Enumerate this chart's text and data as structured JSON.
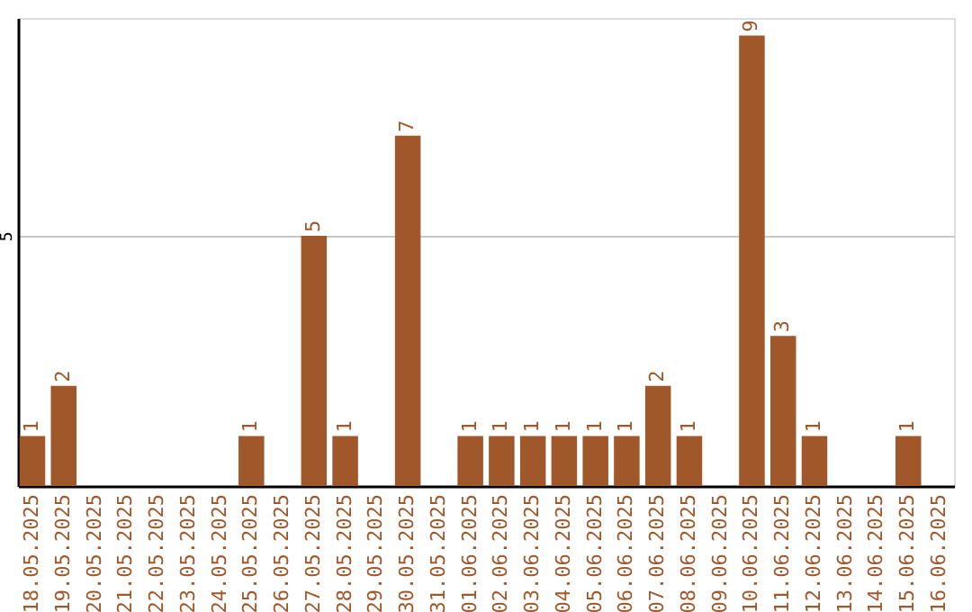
{
  "chart_data": {
    "type": "bar",
    "categories": [
      "18.05.2025",
      "19.05.2025",
      "20.05.2025",
      "21.05.2025",
      "22.05.2025",
      "23.05.2025",
      "24.05.2025",
      "25.05.2025",
      "26.05.2025",
      "27.05.2025",
      "28.05.2025",
      "29.05.2025",
      "30.05.2025",
      "31.05.2025",
      "01.06.2025",
      "02.06.2025",
      "03.06.2025",
      "04.06.2025",
      "05.06.2025",
      "06.06.2025",
      "07.06.2025",
      "08.06.2025",
      "09.06.2025",
      "10.06.2025",
      "11.06.2025",
      "12.06.2025",
      "13.06.2025",
      "14.06.2025",
      "15.06.2025",
      "16.06.2025"
    ],
    "values": [
      1,
      2,
      0,
      0,
      0,
      0,
      0,
      1,
      0,
      5,
      1,
      0,
      7,
      0,
      1,
      1,
      1,
      1,
      1,
      1,
      2,
      1,
      0,
      9,
      3,
      1,
      0,
      0,
      1,
      0
    ],
    "value_labels": [
      "1",
      "2",
      null,
      null,
      null,
      null,
      null,
      "1",
      null,
      "5",
      "1",
      null,
      "7",
      null,
      "1",
      "1",
      "1",
      "1",
      "1",
      "1",
      "2",
      "1",
      null,
      "9",
      "3",
      "1",
      null,
      null,
      "1",
      null
    ],
    "color": "#a0572a",
    "ylim": [
      0,
      9.35
    ],
    "yticks": [
      5
    ],
    "grid": "y"
  }
}
